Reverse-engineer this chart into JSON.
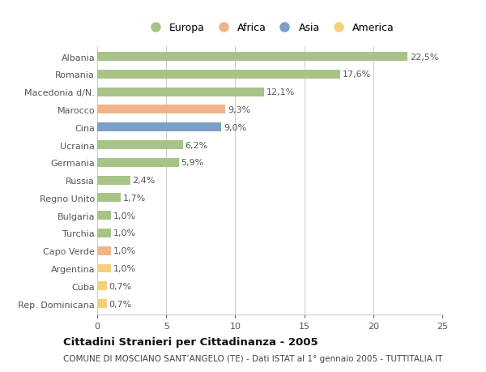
{
  "countries": [
    "Albania",
    "Romania",
    "Macedonia d/N.",
    "Marocco",
    "Cina",
    "Ucraina",
    "Germania",
    "Russia",
    "Regno Unito",
    "Bulgaria",
    "Turchia",
    "Capo Verde",
    "Argentina",
    "Cuba",
    "Rep. Dominicana"
  ],
  "values": [
    22.5,
    17.6,
    12.1,
    9.3,
    9.0,
    6.2,
    5.9,
    2.4,
    1.7,
    1.0,
    1.0,
    1.0,
    1.0,
    0.7,
    0.7
  ],
  "labels": [
    "22,5%",
    "17,6%",
    "12,1%",
    "9,3%",
    "9,0%",
    "6,2%",
    "5,9%",
    "2,4%",
    "1,7%",
    "1,0%",
    "1,0%",
    "1,0%",
    "1,0%",
    "0,7%",
    "0,7%"
  ],
  "continents": [
    "Europa",
    "Europa",
    "Europa",
    "Africa",
    "Asia",
    "Europa",
    "Europa",
    "Europa",
    "Europa",
    "Europa",
    "Europa",
    "Africa",
    "America",
    "America",
    "America"
  ],
  "continent_colors": {
    "Europa": "#a8c387",
    "Africa": "#f0b48a",
    "Asia": "#7b9fc7",
    "America": "#f5d07a"
  },
  "legend_order": [
    "Europa",
    "Africa",
    "Asia",
    "America"
  ],
  "xlim": [
    0,
    25
  ],
  "xticks": [
    0,
    5,
    10,
    15,
    20,
    25
  ],
  "title": "Cittadini Stranieri per Cittadinanza - 2005",
  "subtitle": "COMUNE DI MOSCIANO SANT’ANGELO (TE) - Dati ISTAT al 1° gennaio 2005 - TUTTITALIA.IT",
  "bg_color": "#ffffff",
  "grid_color": "#cccccc",
  "bar_height": 0.5,
  "label_fontsize": 8.0,
  "ytick_fontsize": 8.0,
  "xtick_fontsize": 8.0,
  "title_fontsize": 9.5,
  "subtitle_fontsize": 7.5,
  "legend_fontsize": 9.0
}
